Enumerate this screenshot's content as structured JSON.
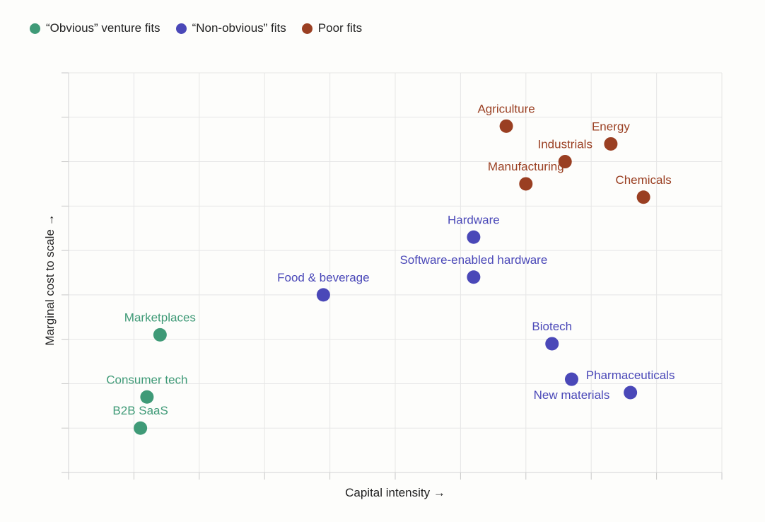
{
  "colors": {
    "obvious": "#3f9a77",
    "nonobvious": "#4a48b8",
    "poor": "#9a3f22"
  },
  "legend": [
    {
      "label": "“Obvious” venture fits",
      "color_key": "obvious"
    },
    {
      "label": "“Non-obvious” fits",
      "color_key": "nonobvious"
    },
    {
      "label": "Poor fits",
      "color_key": "poor"
    }
  ],
  "chart_data": {
    "type": "scatter",
    "title": "",
    "xlabel": "Capital intensity →",
    "ylabel": "Marginal cost to scale →",
    "xlim": [
      0,
      10
    ],
    "ylim": [
      0,
      9
    ],
    "grid": true,
    "legend_position": "top-left",
    "series": [
      {
        "name": "“Obvious” venture fits",
        "color_key": "obvious",
        "points": [
          {
            "label": "Marketplaces",
            "x": 1.4,
            "y": 3.1,
            "label_pos": "above"
          },
          {
            "label": "Consumer tech",
            "x": 1.2,
            "y": 1.7,
            "label_pos": "above"
          },
          {
            "label": "B2B SaaS",
            "x": 1.1,
            "y": 1.0,
            "label_pos": "above"
          }
        ]
      },
      {
        "name": "“Non-obvious” fits",
        "color_key": "nonobvious",
        "points": [
          {
            "label": "Food & beverage",
            "x": 3.9,
            "y": 4.0,
            "label_pos": "above"
          },
          {
            "label": "Hardware",
            "x": 6.2,
            "y": 5.3,
            "label_pos": "above"
          },
          {
            "label": "Software-enabled hardware",
            "x": 6.2,
            "y": 4.4,
            "label_pos": "above"
          },
          {
            "label": "Biotech",
            "x": 7.4,
            "y": 2.9,
            "label_pos": "above"
          },
          {
            "label": "New materials",
            "x": 7.7,
            "y": 2.1,
            "label_pos": "below"
          },
          {
            "label": "Pharmaceuticals",
            "x": 8.6,
            "y": 1.8,
            "label_pos": "above"
          }
        ]
      },
      {
        "name": "Poor fits",
        "color_key": "poor",
        "points": [
          {
            "label": "Agriculture",
            "x": 6.7,
            "y": 7.8,
            "label_pos": "above"
          },
          {
            "label": "Energy",
            "x": 8.3,
            "y": 7.4,
            "label_pos": "above"
          },
          {
            "label": "Industrials",
            "x": 7.6,
            "y": 7.0,
            "label_pos": "above"
          },
          {
            "label": "Manufacturing",
            "x": 7.0,
            "y": 6.5,
            "label_pos": "above"
          },
          {
            "label": "Chemicals",
            "x": 8.8,
            "y": 6.2,
            "label_pos": "above"
          }
        ]
      }
    ]
  }
}
